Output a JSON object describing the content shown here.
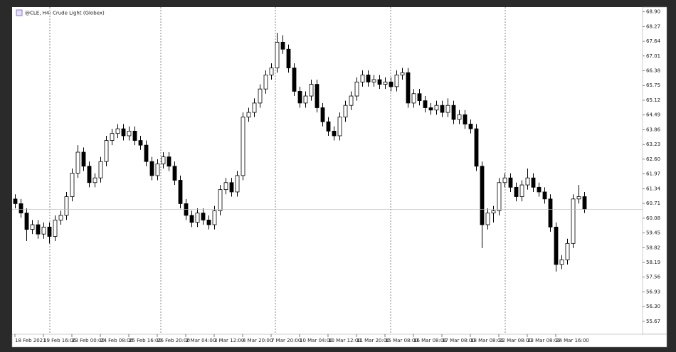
{
  "chart_data": {
    "type": "candlestick",
    "title": "@CLE, H4: Crude Light (Globex)",
    "categories": [
      "18 Feb 2021",
      null,
      null,
      null,
      null,
      "19 Feb 16:00",
      null,
      null,
      null,
      null,
      "23 Feb 00:00",
      null,
      null,
      null,
      null,
      "24 Feb 08:00",
      null,
      null,
      null,
      null,
      "25 Feb 16:00",
      null,
      null,
      null,
      null,
      "26 Feb 20:00",
      null,
      null,
      null,
      null,
      "2 Mar 04:00",
      null,
      null,
      null,
      null,
      "3 Mar 12:00",
      null,
      null,
      null,
      null,
      "4 Mar 20:00",
      null,
      null,
      null,
      null,
      "7 Mar 20:00",
      null,
      null,
      null,
      null,
      "10 Mar 04:00",
      null,
      null,
      null,
      null,
      "10 Mar 12:00",
      null,
      null,
      null,
      null,
      "11 Mar 20:00",
      null,
      null,
      null,
      null,
      "15 Mar 08:00",
      null,
      null,
      null,
      null,
      "16 Mar 08:00",
      null,
      null,
      null,
      null,
      "17 Mar 08:00",
      null,
      null,
      null,
      null,
      "18 Mar 08:00",
      null,
      null,
      null,
      null,
      "22 Mar 08:00",
      null,
      null,
      null,
      null,
      "23 Mar 08:00",
      null,
      null,
      null,
      null,
      "24 Mar 16:00",
      null,
      null,
      null,
      null,
      null
    ],
    "open": [
      60.9,
      60.7,
      60.3,
      59.6,
      59.8,
      59.4,
      59.7,
      59.3,
      60.0,
      60.2,
      61.0,
      62.0,
      62.9,
      62.3,
      61.6,
      61.8,
      62.5,
      63.4,
      63.7,
      63.9,
      63.6,
      63.8,
      63.4,
      63.2,
      62.5,
      61.9,
      62.4,
      62.7,
      62.3,
      61.7,
      60.7,
      60.2,
      59.9,
      60.3,
      60.0,
      59.8,
      60.4,
      61.3,
      61.6,
      61.2,
      61.9,
      64.4,
      64.6,
      65.0,
      65.6,
      66.2,
      66.5,
      67.6,
      67.3,
      66.5,
      65.5,
      65.0,
      65.3,
      65.8,
      64.8,
      64.2,
      63.8,
      63.6,
      64.4,
      64.9,
      65.3,
      65.9,
      66.2,
      65.9,
      66.0,
      65.8,
      65.9,
      65.7,
      66.2,
      66.3,
      65.0,
      65.4,
      65.1,
      64.8,
      64.7,
      64.9,
      64.6,
      64.9,
      64.3,
      64.5,
      64.1,
      63.9,
      62.3,
      59.8,
      60.3,
      60.4,
      61.6,
      61.8,
      61.4,
      61.0,
      61.5,
      61.8,
      61.4,
      61.2,
      60.9,
      59.7,
      58.1,
      58.3,
      59.0,
      60.9,
      61.0
    ],
    "high": [
      61.1,
      60.9,
      60.5,
      60.0,
      60.0,
      59.9,
      59.9,
      60.2,
      60.4,
      61.2,
      62.2,
      63.2,
      63.1,
      62.5,
      62.0,
      62.7,
      63.6,
      63.9,
      64.1,
      64.1,
      64.0,
      64.0,
      63.6,
      63.4,
      62.7,
      62.6,
      62.9,
      62.9,
      62.5,
      61.9,
      60.9,
      60.4,
      60.5,
      60.5,
      60.2,
      60.6,
      61.5,
      61.8,
      61.8,
      62.1,
      64.6,
      64.8,
      65.2,
      65.8,
      66.4,
      66.7,
      68.0,
      67.9,
      67.5,
      66.7,
      65.7,
      65.5,
      66.0,
      66.0,
      65.0,
      64.4,
      64.0,
      64.6,
      65.1,
      65.5,
      66.1,
      66.4,
      66.4,
      66.2,
      66.2,
      66.1,
      66.1,
      66.4,
      66.5,
      66.5,
      65.6,
      65.6,
      65.3,
      65.0,
      65.1,
      65.1,
      65.2,
      65.1,
      64.7,
      64.7,
      64.3,
      64.1,
      62.5,
      60.5,
      60.6,
      61.8,
      62.0,
      62.0,
      61.6,
      61.7,
      62.2,
      62.0,
      61.6,
      61.4,
      61.1,
      59.9,
      58.5,
      59.2,
      61.1,
      61.5,
      61.2
    ],
    "low": [
      60.5,
      60.1,
      59.1,
      59.4,
      59.2,
      59.2,
      59.0,
      59.1,
      59.8,
      60.0,
      60.8,
      61.8,
      62.1,
      61.4,
      61.4,
      61.6,
      62.3,
      63.2,
      63.5,
      63.4,
      63.4,
      63.2,
      63.0,
      62.3,
      61.7,
      61.7,
      62.2,
      62.1,
      61.5,
      60.5,
      60.0,
      59.7,
      59.7,
      59.8,
      59.6,
      59.6,
      60.2,
      61.1,
      61.0,
      61.0,
      61.7,
      64.2,
      64.4,
      64.8,
      65.4,
      66.0,
      66.3,
      67.1,
      66.3,
      65.3,
      64.8,
      64.8,
      65.1,
      64.6,
      64.0,
      63.6,
      63.4,
      63.4,
      64.2,
      64.7,
      65.1,
      65.7,
      65.7,
      65.7,
      65.6,
      65.6,
      65.5,
      65.5,
      66.0,
      64.8,
      64.8,
      64.9,
      64.6,
      64.5,
      64.5,
      64.4,
      64.4,
      64.1,
      64.1,
      63.9,
      63.7,
      62.1,
      58.8,
      59.6,
      59.9,
      60.2,
      61.4,
      61.2,
      60.8,
      60.8,
      61.3,
      61.2,
      61.0,
      60.7,
      59.5,
      57.8,
      57.9,
      58.1,
      58.8,
      60.7,
      60.3
    ],
    "close": [
      60.7,
      60.3,
      59.6,
      59.8,
      59.4,
      59.7,
      59.3,
      60.0,
      60.2,
      61.0,
      62.0,
      62.9,
      62.3,
      61.6,
      61.8,
      62.5,
      63.4,
      63.7,
      63.9,
      63.6,
      63.8,
      63.4,
      63.2,
      62.5,
      61.9,
      62.4,
      62.7,
      62.3,
      61.7,
      60.7,
      60.2,
      59.9,
      60.3,
      60.0,
      59.8,
      60.4,
      61.3,
      61.6,
      61.2,
      61.9,
      64.4,
      64.6,
      65.0,
      65.6,
      66.2,
      66.5,
      67.6,
      67.3,
      66.5,
      65.5,
      65.0,
      65.3,
      65.8,
      64.8,
      64.2,
      63.8,
      63.6,
      64.4,
      64.9,
      65.3,
      65.9,
      66.2,
      65.9,
      66.0,
      65.8,
      65.9,
      65.7,
      66.2,
      66.3,
      65.0,
      65.4,
      65.1,
      64.8,
      64.7,
      64.9,
      64.6,
      64.9,
      64.3,
      64.5,
      64.1,
      63.9,
      62.3,
      59.8,
      60.3,
      60.4,
      61.6,
      61.8,
      61.4,
      61.0,
      61.5,
      61.8,
      61.4,
      61.2,
      60.9,
      59.7,
      58.1,
      58.3,
      59.0,
      60.9,
      61.0,
      60.46
    ],
    "up_color": "#ffffff",
    "down_color": "#000000",
    "ylim": [
      55.12,
      69.1
    ],
    "yticks": [
      {
        "value": 68.9,
        "label": "68.90"
      },
      68.27,
      67.64,
      67.01,
      66.38,
      65.75,
      65.12,
      64.49,
      63.86,
      63.23,
      {
        "value": 62.6,
        "label": "62.60"
      },
      61.97,
      61.34,
      60.71,
      60.08,
      59.45,
      58.82,
      58.19,
      57.56,
      56.93,
      {
        "value": 56.3,
        "label": "56.30"
      },
      55.67
    ]
  }
}
